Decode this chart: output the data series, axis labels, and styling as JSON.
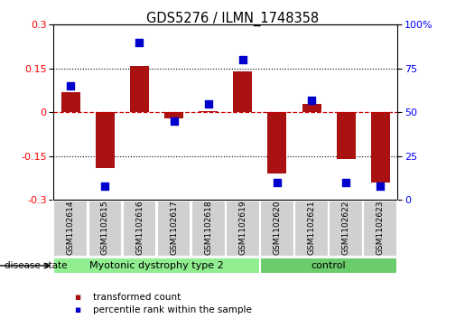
{
  "title": "GDS5276 / ILMN_1748358",
  "samples": [
    "GSM1102614",
    "GSM1102615",
    "GSM1102616",
    "GSM1102617",
    "GSM1102618",
    "GSM1102619",
    "GSM1102620",
    "GSM1102621",
    "GSM1102622",
    "GSM1102623"
  ],
  "bar_values": [
    0.07,
    -0.19,
    0.16,
    -0.02,
    0.005,
    0.14,
    -0.21,
    0.03,
    -0.16,
    -0.24
  ],
  "scatter_values": [
    65,
    8,
    90,
    45,
    55,
    80,
    10,
    57,
    10,
    8
  ],
  "ylim_left": [
    -0.3,
    0.3
  ],
  "ylim_right": [
    0,
    100
  ],
  "yticks_left": [
    -0.3,
    -0.15,
    0.0,
    0.15,
    0.3
  ],
  "yticks_right": [
    0,
    25,
    50,
    75,
    100
  ],
  "bar_color": "#AA1111",
  "scatter_color": "#0000CC",
  "group_configs": [
    {
      "start": 0,
      "end": 6,
      "label": "Myotonic dystrophy type 2",
      "color": "#90EE90"
    },
    {
      "start": 6,
      "end": 10,
      "label": "control",
      "color": "#6BCC6B"
    }
  ],
  "disease_state_label": "disease state",
  "legend_bar_label": "transformed count",
  "legend_scatter_label": "percentile rank within the sample",
  "grid_color": "#000000",
  "zero_line_color": "#CC0000",
  "label_area_color": "#D0D0D0",
  "scatter_size": 28
}
